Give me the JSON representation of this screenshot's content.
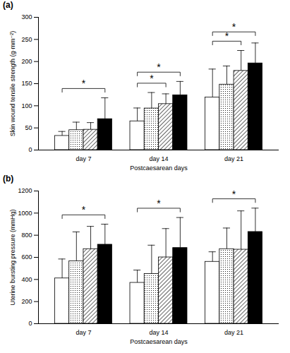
{
  "chart_data": [
    {
      "type": "bar",
      "title": "(a)",
      "x_label": "Postcaesarean days",
      "y_label": "Skin wound tensile strength (g·mm⁻²)",
      "categories": [
        "day 7",
        "day 14",
        "day 21"
      ],
      "series": [
        {
          "color": "#ffffff",
          "values": [
            32,
            65,
            119
          ],
          "errors": [
            10,
            30,
            64
          ]
        },
        {
          "color": "#ffffff",
          "values": [
            45,
            94,
            148
          ],
          "errors": [
            18,
            36,
            42
          ]
        },
        {
          "color": "#ffffff",
          "values": [
            46,
            104,
            179
          ],
          "errors": [
            16,
            23,
            46
          ]
        },
        {
          "color": "#000000",
          "values": [
            70,
            124,
            196
          ],
          "errors": [
            48,
            31,
            46
          ]
        }
      ],
      "significance": [
        {
          "category": 0,
          "from": 0,
          "to": 3,
          "label": "*"
        },
        {
          "category": 1,
          "from": 0,
          "to": 2,
          "label": "*"
        },
        {
          "category": 1,
          "from": 0,
          "to": 3,
          "label": "*"
        },
        {
          "category": 2,
          "from": 0,
          "to": 2,
          "label": "*"
        },
        {
          "category": 2,
          "from": 0,
          "to": 3,
          "label": "*"
        }
      ],
      "ylim": [
        0,
        300
      ],
      "yticks": [
        0,
        50,
        100,
        150,
        200,
        250,
        300
      ],
      "grid": false
    },
    {
      "type": "bar",
      "title": "(b)",
      "x_label": "Postcaesarean days",
      "y_label": "Uterine bursting pressure (mmHg)",
      "categories": [
        "day 7",
        "day 14",
        "day 21"
      ],
      "series": [
        {
          "color": "#ffffff",
          "values": [
            410,
            370,
            560
          ],
          "errors": [
            175,
            115,
            90
          ]
        },
        {
          "color": "#ffffff",
          "values": [
            565,
            450,
            675
          ],
          "errors": [
            265,
            260,
            190
          ]
        },
        {
          "color": "#ffffff",
          "values": [
            675,
            600,
            670
          ],
          "errors": [
            205,
            260,
            350
          ]
        },
        {
          "color": "#000000",
          "values": [
            715,
            685,
            830
          ],
          "errors": [
            185,
            275,
            215
          ]
        }
      ],
      "significance": [
        {
          "category": 0,
          "from": 0,
          "to": 3,
          "label": "*"
        },
        {
          "category": 1,
          "from": 0,
          "to": 3,
          "label": "*"
        },
        {
          "category": 2,
          "from": 0,
          "to": 3,
          "label": "*"
        }
      ],
      "ylim": [
        0,
        1200
      ],
      "yticks": [
        0,
        200,
        400,
        600,
        800,
        1000,
        1200
      ],
      "grid": false
    }
  ]
}
